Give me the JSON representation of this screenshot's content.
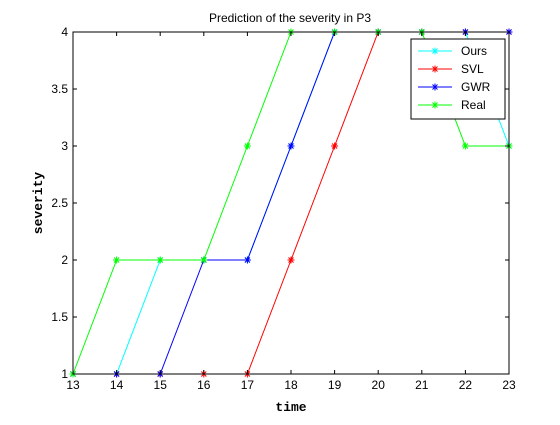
{
  "chart_data": {
    "type": "line",
    "title": "Prediction of  the severity in  P3",
    "xlabel": "time",
    "ylabel": "severity",
    "xlim": [
      13,
      23
    ],
    "ylim": [
      1,
      4
    ],
    "xticks": [
      "13",
      "14",
      "15",
      "16",
      "17",
      "18",
      "19",
      "20",
      "21",
      "22",
      "23"
    ],
    "yticks": [
      "1",
      "1.5",
      "2",
      "2.5",
      "3",
      "3.5",
      "4"
    ],
    "grid": false,
    "legend_position": "top-right",
    "marker": "asterisk",
    "series": [
      {
        "name": "Ours",
        "color": "#00ffff",
        "x": [
          13,
          14,
          15,
          16,
          17,
          18,
          19,
          20,
          21,
          22,
          23
        ],
        "y": [
          1,
          1,
          2,
          2,
          2,
          3,
          4,
          4,
          4,
          4,
          3
        ]
      },
      {
        "name": "SVL",
        "color": "#ff0000",
        "x": [
          13,
          14,
          15,
          16,
          17,
          18,
          19,
          20,
          21,
          22,
          23
        ],
        "y": [
          1,
          1,
          1,
          1,
          1,
          2,
          3,
          4,
          4,
          4,
          4
        ]
      },
      {
        "name": "GWR",
        "color": "#0000ff",
        "x": [
          13,
          14,
          15,
          16,
          17,
          18,
          19,
          20,
          21,
          22,
          23
        ],
        "y": [
          1,
          1,
          1,
          2,
          2,
          3,
          4,
          4,
          4,
          4,
          4
        ]
      },
      {
        "name": "Real",
        "color": "#00ff00",
        "x": [
          13,
          14,
          15,
          16,
          17,
          18,
          19,
          20,
          21,
          22,
          23
        ],
        "y": [
          1,
          2,
          2,
          2,
          3,
          4,
          4,
          4,
          4,
          3,
          3
        ]
      }
    ]
  }
}
